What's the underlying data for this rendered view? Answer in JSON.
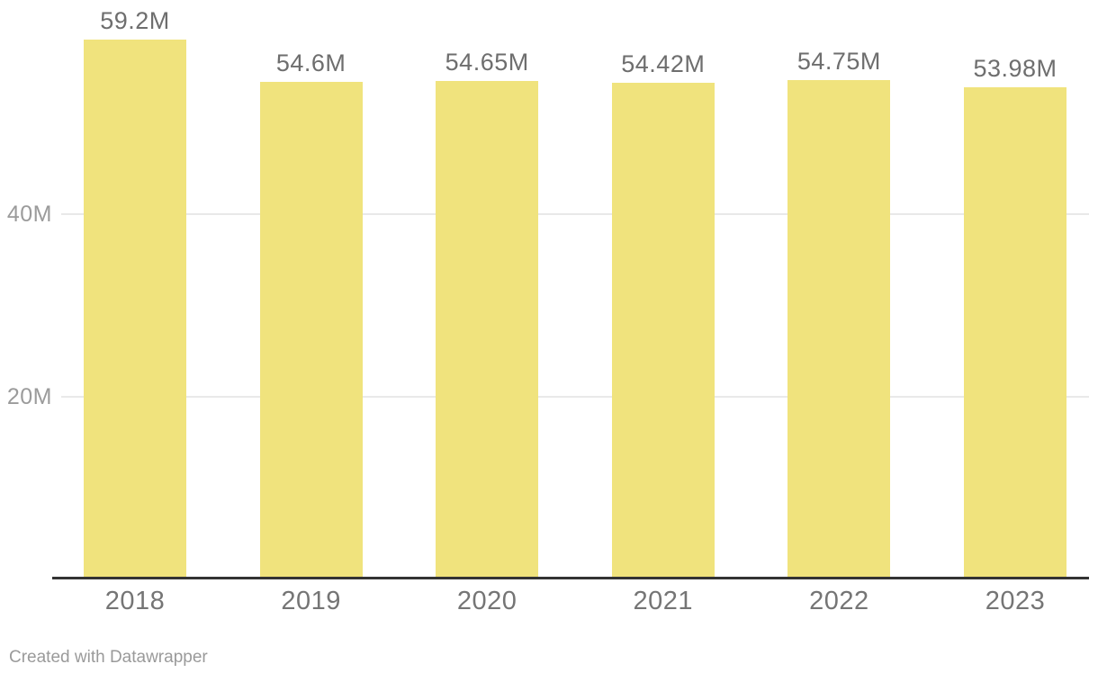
{
  "chart_data": {
    "type": "bar",
    "title": "",
    "xlabel": "",
    "ylabel": "",
    "categories": [
      "2018",
      "2019",
      "2020",
      "2021",
      "2022",
      "2023"
    ],
    "values": [
      59.2,
      54.6,
      54.65,
      54.42,
      54.75,
      53.98
    ],
    "value_labels": [
      "59.2M",
      "54.6M",
      "54.65M",
      "54.42M",
      "54.75M",
      "53.98M"
    ],
    "unit": "M",
    "ylim": [
      0,
      60
    ],
    "yticks": [
      {
        "value": 20,
        "label": "20M"
      },
      {
        "value": 40,
        "label": "40M"
      }
    ],
    "grid": "horizontal-behind-bars",
    "legend": "none"
  },
  "colors": {
    "background": "#FFFFFF",
    "bar": "#F0E37D",
    "gridline": "#E9E9E9",
    "axis_line": "#333333",
    "value_label": "#6E6E6E",
    "x_label": "#757575",
    "axis_tick_label": "#9B9B9B",
    "footer_text": "#9A9A9A"
  },
  "footer": {
    "credit": "Created with Datawrapper"
  }
}
